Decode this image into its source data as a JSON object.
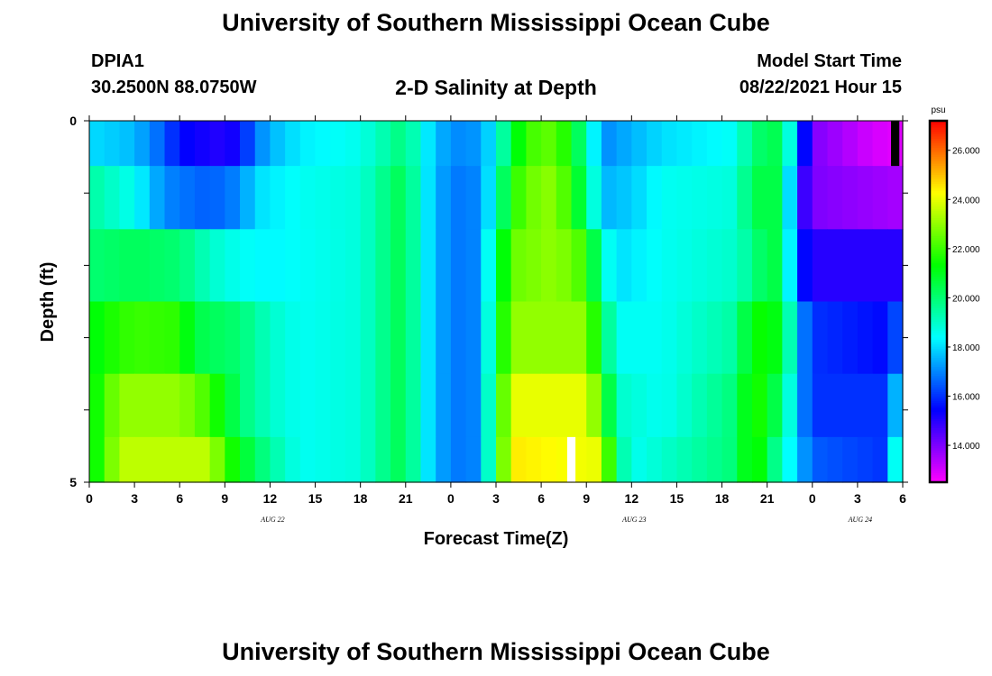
{
  "header": {
    "main_title": "University of Southern Mississippi Ocean Cube",
    "station_id": "DPIA1",
    "station_coords": "30.2500N  88.0750W",
    "plot_title": "2-D Salinity at Depth",
    "model_start_label": "Model Start Time",
    "model_start_value": "08/22/2021 Hour 15"
  },
  "footer": {
    "title": "University of Southern Mississippi Ocean Cube"
  },
  "chart_data": {
    "type": "heatmap",
    "title": "2-D Salinity at Depth",
    "xlabel": "Forecast Time(Z)",
    "ylabel": "Depth (ft)",
    "x_tick_labels": [
      "0",
      "3",
      "6",
      "9",
      "12",
      "15",
      "18",
      "21",
      "0",
      "3",
      "6",
      "9",
      "12",
      "15",
      "18",
      "21",
      "0",
      "3",
      "6"
    ],
    "date_labels": [
      {
        "label": "AUG  22",
        "tick_index": 4
      },
      {
        "label": "AUG  23",
        "tick_index": 12
      },
      {
        "label": "AUG  24",
        "tick_index": 17
      }
    ],
    "y_tick_labels": [
      "0",
      "5"
    ],
    "ylim": [
      0,
      5
    ],
    "x_range_hours": [
      0,
      54
    ],
    "colorbar": {
      "unit": "psu",
      "min": 12.5,
      "max": 27.2,
      "tick_labels": [
        "14.000",
        "16.000",
        "18.000",
        "20.000",
        "22.000",
        "24.000",
        "26.000"
      ],
      "tick_values": [
        14,
        16,
        18,
        20,
        22,
        24,
        26
      ]
    },
    "time_step_hours": 1,
    "depth_layers_ft": [
      0.25,
      1.0,
      2.0,
      3.0,
      4.0,
      4.75
    ],
    "salinity_keyframes": [
      [
        [
          0,
          18.0
        ],
        [
          3,
          17.6
        ],
        [
          4,
          17.0
        ],
        [
          5,
          16.5
        ],
        [
          6,
          15.5
        ],
        [
          9,
          15.0
        ],
        [
          10,
          15.5
        ],
        [
          11,
          16.8
        ],
        [
          12,
          17.5
        ],
        [
          14,
          18.2
        ],
        [
          18,
          18.6
        ],
        [
          20,
          19.5
        ],
        [
          21,
          20.0
        ],
        [
          22,
          18.5
        ],
        [
          24,
          17.0
        ],
        [
          26,
          17.2
        ],
        [
          27,
          18.5
        ],
        [
          28,
          20.5
        ],
        [
          29,
          22.0
        ],
        [
          31,
          22.5
        ],
        [
          32,
          21.0
        ],
        [
          33,
          19.5
        ],
        [
          34,
          17.0
        ],
        [
          36,
          17.5
        ],
        [
          38,
          18.0
        ],
        [
          43,
          18.5
        ],
        [
          44,
          20.0
        ],
        [
          46,
          20.5
        ],
        [
          47,
          17.0
        ],
        [
          48,
          14.0
        ],
        [
          52,
          13.0
        ],
        [
          54,
          12.8
        ]
      ],
      [
        [
          0,
          19.5
        ],
        [
          3,
          18.5
        ],
        [
          5,
          17.0
        ],
        [
          8,
          16.5
        ],
        [
          10,
          17.0
        ],
        [
          11,
          18.0
        ],
        [
          14,
          18.5
        ],
        [
          18,
          18.8
        ],
        [
          20,
          20.0
        ],
        [
          21,
          20.5
        ],
        [
          22,
          18.5
        ],
        [
          24,
          16.8
        ],
        [
          26,
          17.0
        ],
        [
          27,
          19.0
        ],
        [
          28,
          21.5
        ],
        [
          29,
          22.5
        ],
        [
          31,
          23.0
        ],
        [
          32,
          21.5
        ],
        [
          33,
          20.0
        ],
        [
          34,
          17.5
        ],
        [
          36,
          17.8
        ],
        [
          38,
          18.5
        ],
        [
          43,
          18.8
        ],
        [
          44,
          20.5
        ],
        [
          46,
          20.5
        ],
        [
          47,
          15.5
        ],
        [
          48,
          14.0
        ],
        [
          54,
          13.5
        ]
      ],
      [
        [
          0,
          20.0
        ],
        [
          3,
          20.3
        ],
        [
          6,
          20.0
        ],
        [
          8,
          19.0
        ],
        [
          10,
          18.5
        ],
        [
          12,
          18.3
        ],
        [
          18,
          18.8
        ],
        [
          20,
          20.0
        ],
        [
          21,
          20.5
        ],
        [
          22,
          18.5
        ],
        [
          24,
          16.8
        ],
        [
          26,
          17.0
        ],
        [
          27,
          20.0
        ],
        [
          28,
          22.5
        ],
        [
          31,
          23.0
        ],
        [
          33,
          22.0
        ],
        [
          34,
          19.0
        ],
        [
          35,
          18.0
        ],
        [
          38,
          18.5
        ],
        [
          43,
          19.0
        ],
        [
          45,
          20.5
        ],
        [
          46,
          20.5
        ],
        [
          47,
          16.0
        ],
        [
          48,
          15.0
        ],
        [
          54,
          15.0
        ]
      ],
      [
        [
          0,
          21.0
        ],
        [
          1,
          21.5
        ],
        [
          3,
          22.0
        ],
        [
          6,
          21.8
        ],
        [
          7,
          20.5
        ],
        [
          10,
          20.0
        ],
        [
          12,
          19.0
        ],
        [
          14,
          18.5
        ],
        [
          18,
          18.8
        ],
        [
          20,
          20.0
        ],
        [
          21,
          20.5
        ],
        [
          22,
          18.5
        ],
        [
          24,
          16.8
        ],
        [
          26,
          17.0
        ],
        [
          27,
          20.5
        ],
        [
          28,
          23.0
        ],
        [
          33,
          23.0
        ],
        [
          34,
          20.5
        ],
        [
          35,
          18.5
        ],
        [
          38,
          18.5
        ],
        [
          43,
          19.5
        ],
        [
          44,
          21.5
        ],
        [
          46,
          21.0
        ],
        [
          47,
          17.5
        ],
        [
          48,
          16.0
        ],
        [
          53,
          15.5
        ],
        [
          54,
          17.0
        ]
      ],
      [
        [
          0,
          21.0
        ],
        [
          1,
          22.0
        ],
        [
          2,
          23.0
        ],
        [
          6,
          23.0
        ],
        [
          8,
          22.0
        ],
        [
          9,
          21.0
        ],
        [
          10,
          20.0
        ],
        [
          12,
          19.0
        ],
        [
          14,
          18.5
        ],
        [
          18,
          18.8
        ],
        [
          20,
          20.0
        ],
        [
          21,
          20.5
        ],
        [
          22,
          18.5
        ],
        [
          24,
          16.8
        ],
        [
          26,
          17.0
        ],
        [
          27,
          21.0
        ],
        [
          28,
          24.0
        ],
        [
          33,
          24.0
        ],
        [
          34,
          22.0
        ],
        [
          35,
          19.0
        ],
        [
          38,
          18.5
        ],
        [
          43,
          20.0
        ],
        [
          44,
          22.0
        ],
        [
          46,
          20.0
        ],
        [
          47,
          17.5
        ],
        [
          48,
          16.0
        ],
        [
          53,
          16.0
        ],
        [
          54,
          19.0
        ]
      ],
      [
        [
          0,
          21.0
        ],
        [
          1,
          22.0
        ],
        [
          2,
          23.5
        ],
        [
          8,
          23.5
        ],
        [
          9,
          22.0
        ],
        [
          10,
          21.0
        ],
        [
          12,
          19.5
        ],
        [
          14,
          18.5
        ],
        [
          18,
          18.8
        ],
        [
          20,
          20.0
        ],
        [
          21,
          20.5
        ],
        [
          22,
          18.5
        ],
        [
          24,
          16.8
        ],
        [
          26,
          17.0
        ],
        [
          27,
          21.0
        ],
        [
          28,
          24.5
        ],
        [
          34,
          24.0
        ],
        [
          35,
          20.0
        ],
        [
          36,
          18.5
        ],
        [
          43,
          20.0
        ],
        [
          44,
          22.0
        ],
        [
          46,
          19.0
        ],
        [
          48,
          16.5
        ],
        [
          53,
          16.0
        ],
        [
          54,
          21.0
        ]
      ]
    ],
    "missing_cells": [
      {
        "layer_index": 0,
        "hour": 53,
        "color": "#000000"
      },
      {
        "layer_index": 5,
        "hour": 31.5,
        "color": "#ffffff"
      }
    ]
  }
}
